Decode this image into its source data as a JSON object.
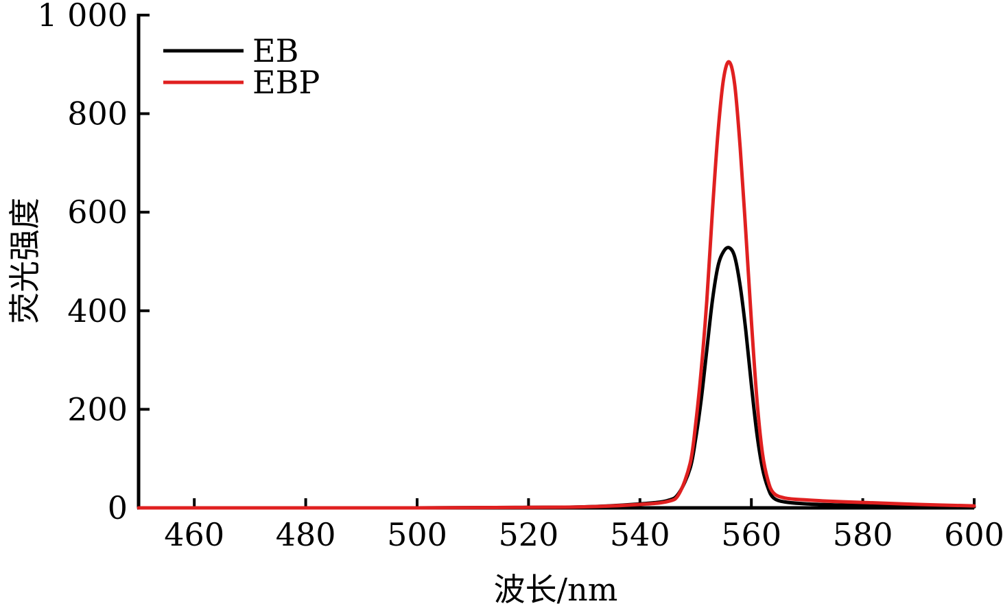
{
  "chart_data": {
    "type": "line",
    "title": "",
    "xlabel": "波长/nm",
    "ylabel": "荧光强度",
    "xlim": [
      450,
      600
    ],
    "ylim": [
      0,
      1000
    ],
    "x_ticks": [
      460,
      480,
      500,
      520,
      540,
      560,
      580,
      600
    ],
    "y_ticks": [
      0,
      200,
      400,
      600,
      800,
      1000
    ],
    "y_tick_labels": [
      "0",
      "200",
      "400",
      "600",
      "800",
      "1 000"
    ],
    "grid": false,
    "legend_position": "top-left",
    "series": [
      {
        "name": "EB",
        "color": "#000000",
        "x": [
          450,
          500,
          520,
          530,
          540,
          545,
          547,
          549,
          550,
          551,
          552,
          553,
          554,
          555,
          556,
          557,
          558,
          559,
          560,
          561,
          562,
          563,
          564,
          566,
          570,
          575,
          580,
          590,
          600
        ],
        "y": [
          0,
          0,
          1,
          2,
          8,
          15,
          30,
          80,
          140,
          220,
          320,
          420,
          490,
          520,
          528,
          510,
          450,
          360,
          250,
          150,
          80,
          40,
          20,
          12,
          8,
          6,
          5,
          3,
          2
        ]
      },
      {
        "name": "EBP",
        "color": "#e02020",
        "x": [
          450,
          500,
          520,
          530,
          540,
          545,
          547,
          549,
          550,
          551,
          552,
          553,
          554,
          555,
          556,
          557,
          558,
          559,
          560,
          561,
          562,
          563,
          564,
          566,
          570,
          575,
          580,
          590,
          600
        ],
        "y": [
          0,
          0,
          1,
          2,
          7,
          13,
          28,
          90,
          170,
          280,
          420,
          600,
          760,
          870,
          905,
          860,
          730,
          560,
          380,
          220,
          110,
          55,
          30,
          20,
          16,
          13,
          11,
          7,
          4
        ]
      }
    ]
  }
}
